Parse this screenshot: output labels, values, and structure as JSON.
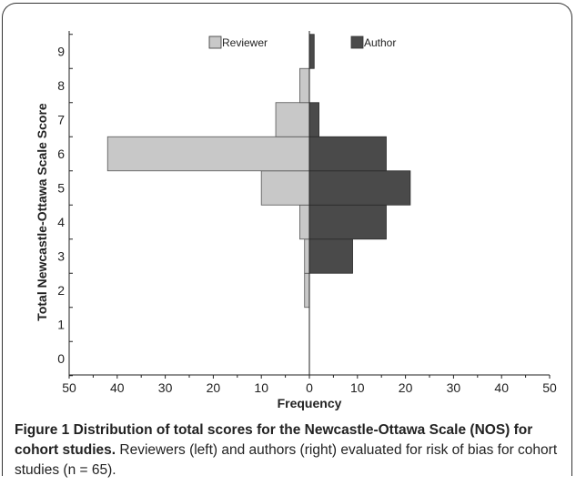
{
  "chart_data": {
    "type": "bar",
    "orientation": "horizontal",
    "layout": "back-to-back",
    "categories": [
      "0",
      "1",
      "2",
      "3",
      "4",
      "5",
      "6",
      "7",
      "8",
      "9"
    ],
    "series": [
      {
        "name": "Reviewer",
        "side": "left",
        "color": "#c8c8c8",
        "values": [
          0,
          0,
          1,
          1,
          2,
          10,
          42,
          7,
          2,
          0
        ]
      },
      {
        "name": "Author",
        "side": "right",
        "color": "#4a4a4a",
        "values": [
          0,
          0,
          0,
          9,
          16,
          21,
          16,
          2,
          0,
          1
        ]
      }
    ],
    "xlabel": "Frequency",
    "ylabel": "Total Newcastle-Ottawa Scale Score",
    "xticks": [
      "50",
      "40",
      "30",
      "20",
      "10",
      "0",
      "10",
      "20",
      "30",
      "40",
      "50"
    ],
    "xlim": [
      -50,
      50
    ],
    "ylim": [
      0,
      9
    ],
    "legend_position": "top",
    "grid": false
  },
  "caption": {
    "title": "Figure 1 Distribution of total scores for the Newcastle-Ottawa Scale (NOS) for cohort studies.",
    "text": " Reviewers (left) and authors (right) evaluated for risk of bias for cohort studies (n = 65)."
  }
}
